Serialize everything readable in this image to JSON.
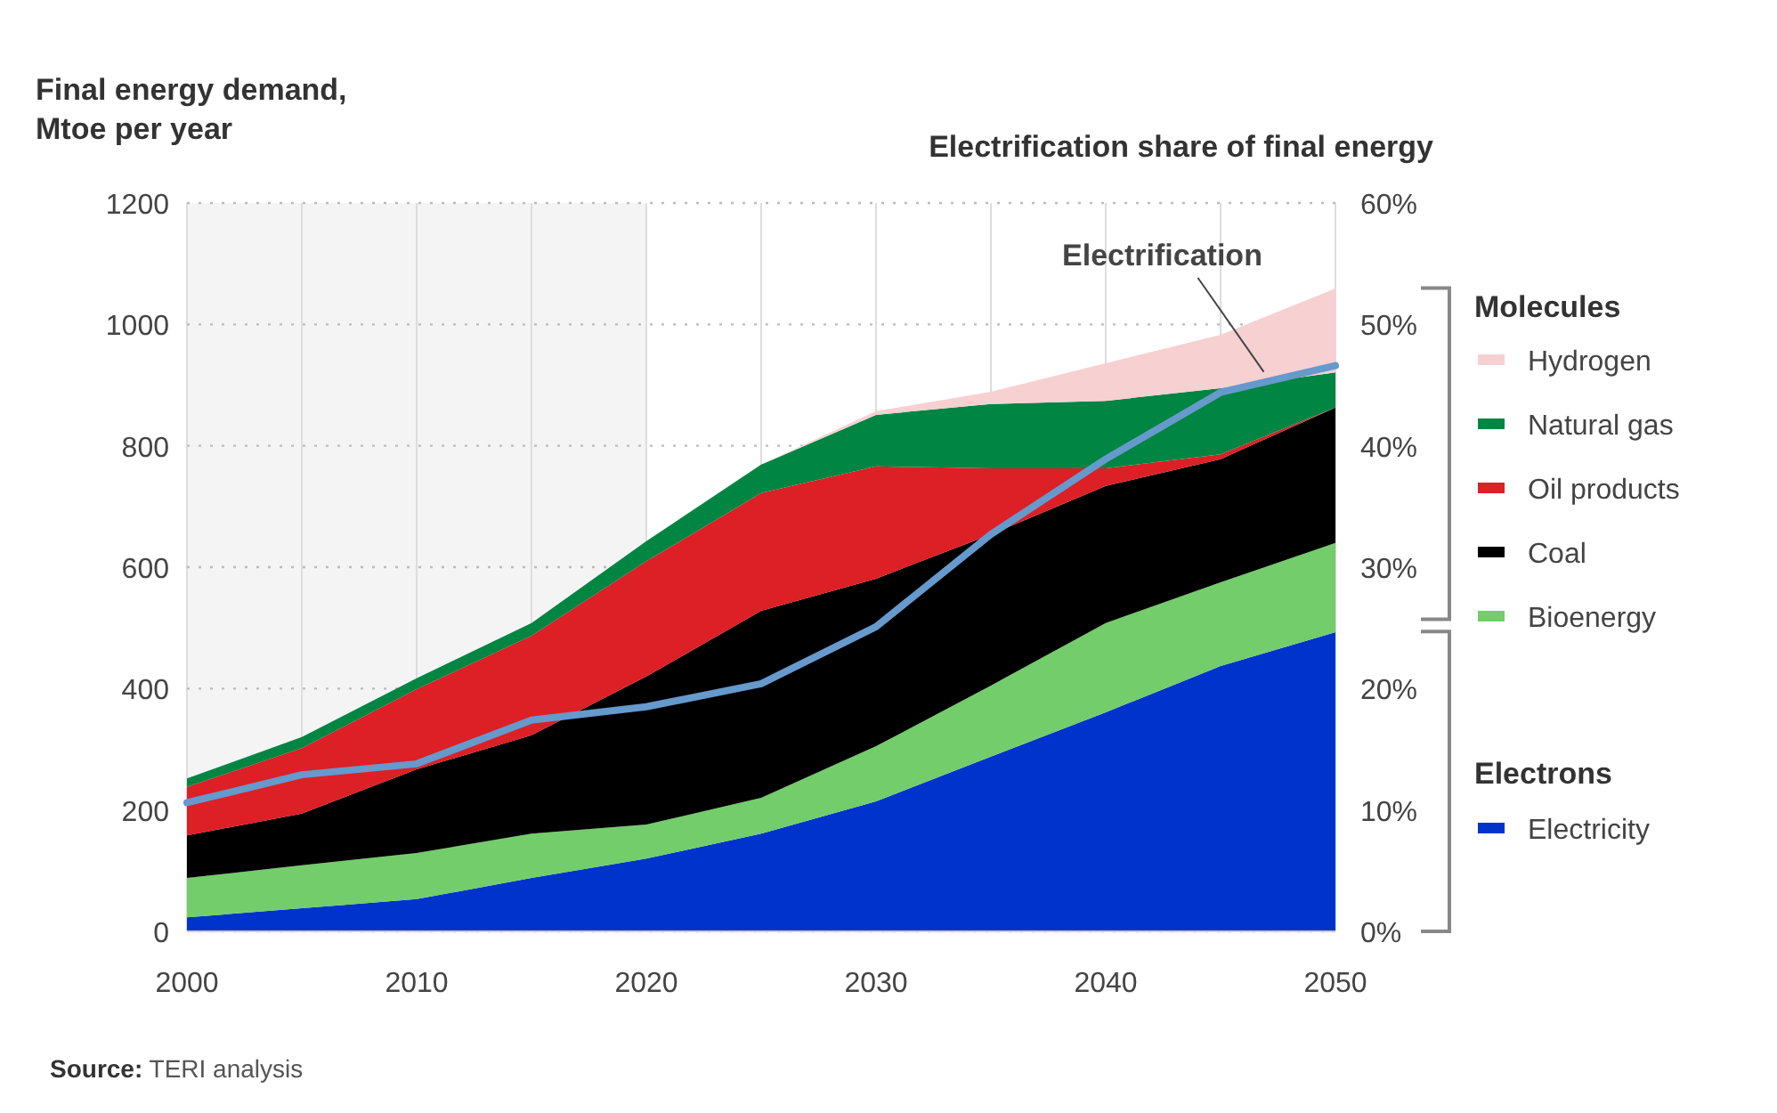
{
  "chart_data": {
    "type": "area",
    "stacked": true,
    "ylabel": "Final energy demand,\nMtoe per year",
    "y2label": "Electrification share of final energy",
    "x": [
      2000,
      2005,
      2010,
      2015,
      2020,
      2025,
      2030,
      2035,
      2040,
      2045,
      2050
    ],
    "xlim": [
      2000,
      2050
    ],
    "xticks": [
      2000,
      {
        "value": 2005,
        "label": null
      },
      2010,
      {
        "value": 2015,
        "label": null
      },
      2020,
      {
        "value": 2025,
        "label": null
      },
      2030,
      {
        "value": 2035,
        "label": null
      },
      2040,
      {
        "value": 2045,
        "label": null
      },
      2050
    ],
    "ylim": [
      0,
      1200
    ],
    "yticks": [
      0,
      200,
      400,
      600,
      800,
      1000,
      1200
    ],
    "y2lim": [
      0,
      60
    ],
    "y2ticks": [
      {
        "value": 0,
        "label": "0%"
      },
      {
        "value": 10,
        "label": "10%"
      },
      {
        "value": 20,
        "label": "20%"
      },
      {
        "value": 30,
        "label": "30%"
      },
      {
        "value": 40,
        "label": "40%"
      },
      {
        "value": 50,
        "label": "50%"
      },
      {
        "value": 60,
        "label": "60%"
      }
    ],
    "grid": true,
    "legend": "right",
    "bands": [
      {
        "axis": "x",
        "from": 2000,
        "to": 2020,
        "color": "#f4f4f4"
      }
    ],
    "annotations": [
      "Molecules",
      "Electrons",
      "Source: TERI analysis"
    ],
    "series": [
      {
        "name": "Electricity",
        "color": "#0033cc",
        "values": [
          23,
          38,
          53,
          88,
          120,
          161,
          214,
          288,
          361,
          437,
          493
        ]
      },
      {
        "name": "Bioenergy",
        "color": "#72cd6a",
        "values": [
          65,
          71,
          76,
          73,
          56,
          59,
          91,
          117,
          147,
          138,
          147
        ]
      },
      {
        "name": "Coal",
        "color": "#000000",
        "values": [
          70,
          85,
          138,
          162,
          244,
          308,
          276,
          249,
          226,
          203,
          223
        ]
      },
      {
        "name": "Oil products",
        "color": "#dd1f26",
        "values": [
          80,
          108,
          132,
          164,
          190,
          194,
          185,
          109,
          29,
          8,
          0
        ]
      },
      {
        "name": "Natural gas",
        "color": "#008542",
        "values": [
          14,
          18,
          18,
          21,
          33,
          47,
          85,
          106,
          111,
          109,
          58
        ]
      },
      {
        "name": "Hydrogen",
        "color": "#f7d0d2",
        "values": [
          0,
          0,
          0,
          0,
          0,
          0,
          6,
          20,
          62,
          88,
          138
        ]
      },
      {
        "name": "Electrification",
        "type": "line",
        "axis": "y2",
        "color": "#6699cc",
        "values": [
          10.6,
          12.9,
          13.8,
          17.4,
          18.5,
          20.4,
          25.1,
          32.7,
          38.9,
          44.4,
          46.6
        ]
      }
    ]
  }
}
